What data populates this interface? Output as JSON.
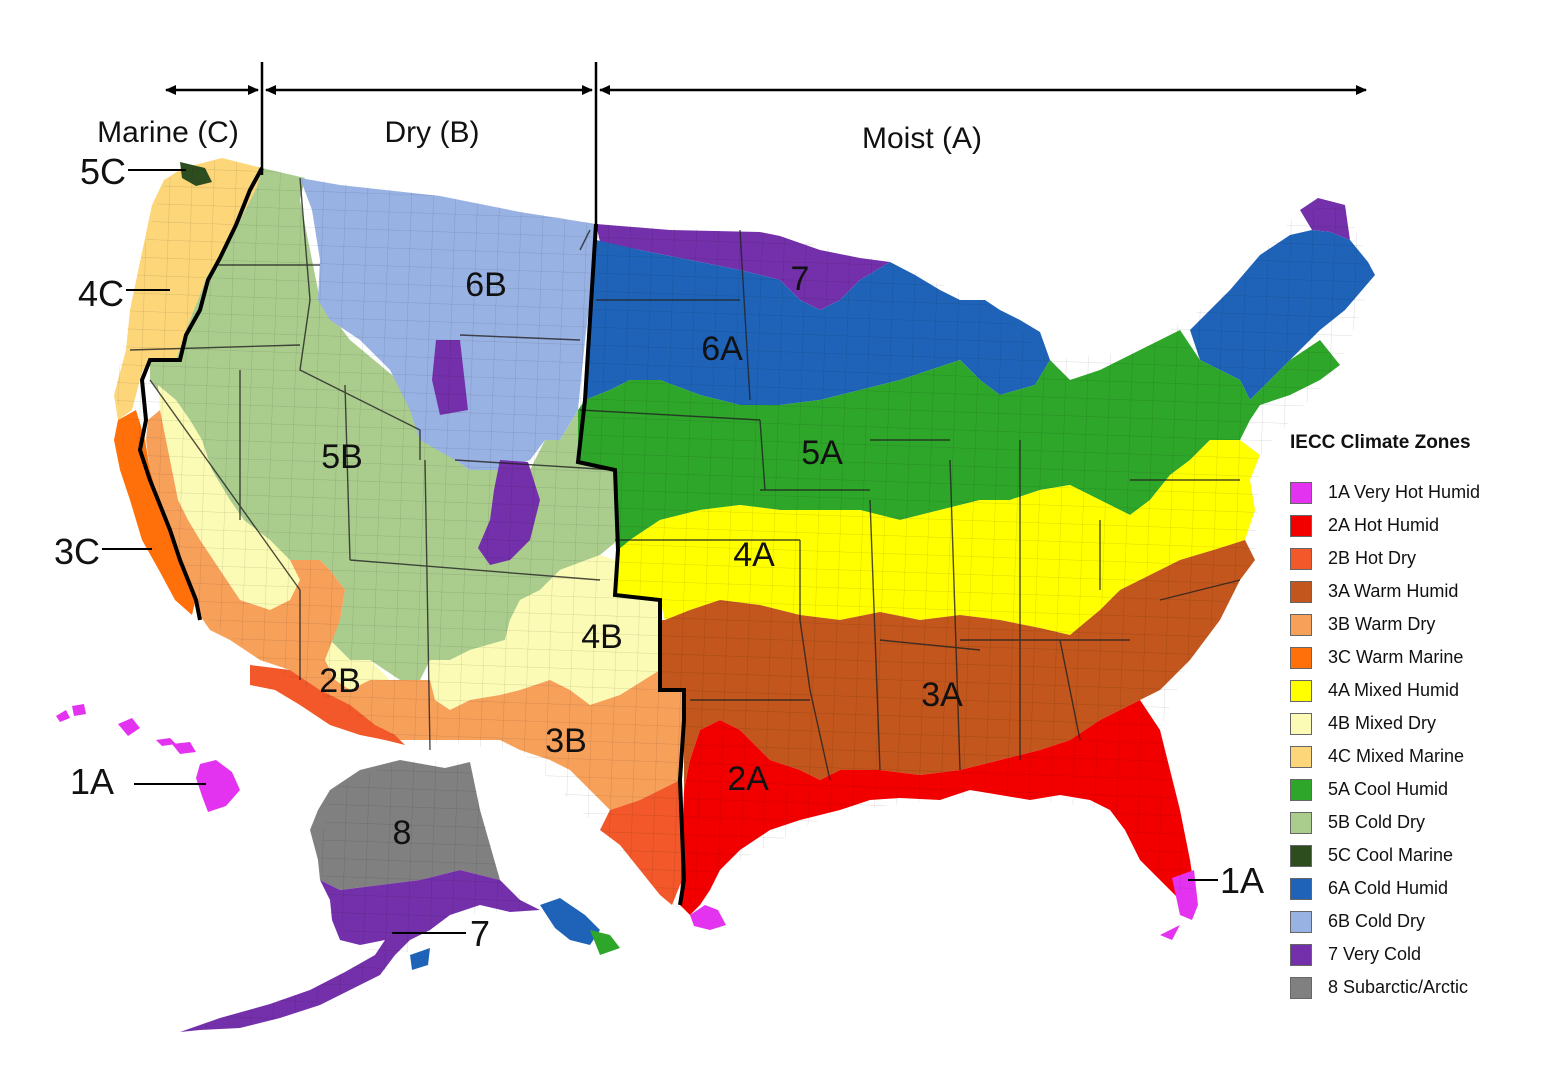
{
  "regions": {
    "marine": "Marine (C)",
    "dry": "Dry (B)",
    "moist": "Moist (A)"
  },
  "zone_labels": {
    "z6b": "6B",
    "z7": "7",
    "z6a": "6A",
    "z5b": "5B",
    "z5a": "5A",
    "z4a": "4A",
    "z4b": "4B",
    "z2b": "2B",
    "z3a": "3A",
    "z3b": "3B",
    "z2a": "2A",
    "z8": "8"
  },
  "callouts": {
    "c5c": "5C",
    "c4c": "4C",
    "c3c": "3C",
    "c1a_hawaii": "1A",
    "c7_alaska": "7",
    "c1a_florida": "1A"
  },
  "legend": {
    "title": "IECC Climate Zones",
    "items": [
      {
        "label": "1A Very Hot Humid",
        "color": "#e433f0"
      },
      {
        "label": "2A Hot Humid",
        "color": "#f20000"
      },
      {
        "label": "2B Hot Dry",
        "color": "#f2582a"
      },
      {
        "label": "3A Warm Humid",
        "color": "#c2561c"
      },
      {
        "label": "3B Warm Dry",
        "color": "#f7a05a"
      },
      {
        "label": "3C Warm Marine",
        "color": "#ff6f0a"
      },
      {
        "label": "4A Mixed Humid",
        "color": "#ffff00"
      },
      {
        "label": "4B Mixed Dry",
        "color": "#fbfbb5"
      },
      {
        "label": "4C Mixed Marine",
        "color": "#fcd679"
      },
      {
        "label": "5A Cool Humid",
        "color": "#2ea62a"
      },
      {
        "label": "5B Cold Dry",
        "color": "#aacd8e"
      },
      {
        "label": "5C Cool Marine",
        "color": "#2e4d1f"
      },
      {
        "label": "6A Cold Humid",
        "color": "#1f63b8"
      },
      {
        "label": "6B Cold Dry",
        "color": "#99b2e4"
      },
      {
        "label": "7 Very Cold",
        "color": "#7330aa"
      },
      {
        "label": "8 Subarctic/Arctic",
        "color": "#808080"
      }
    ]
  }
}
